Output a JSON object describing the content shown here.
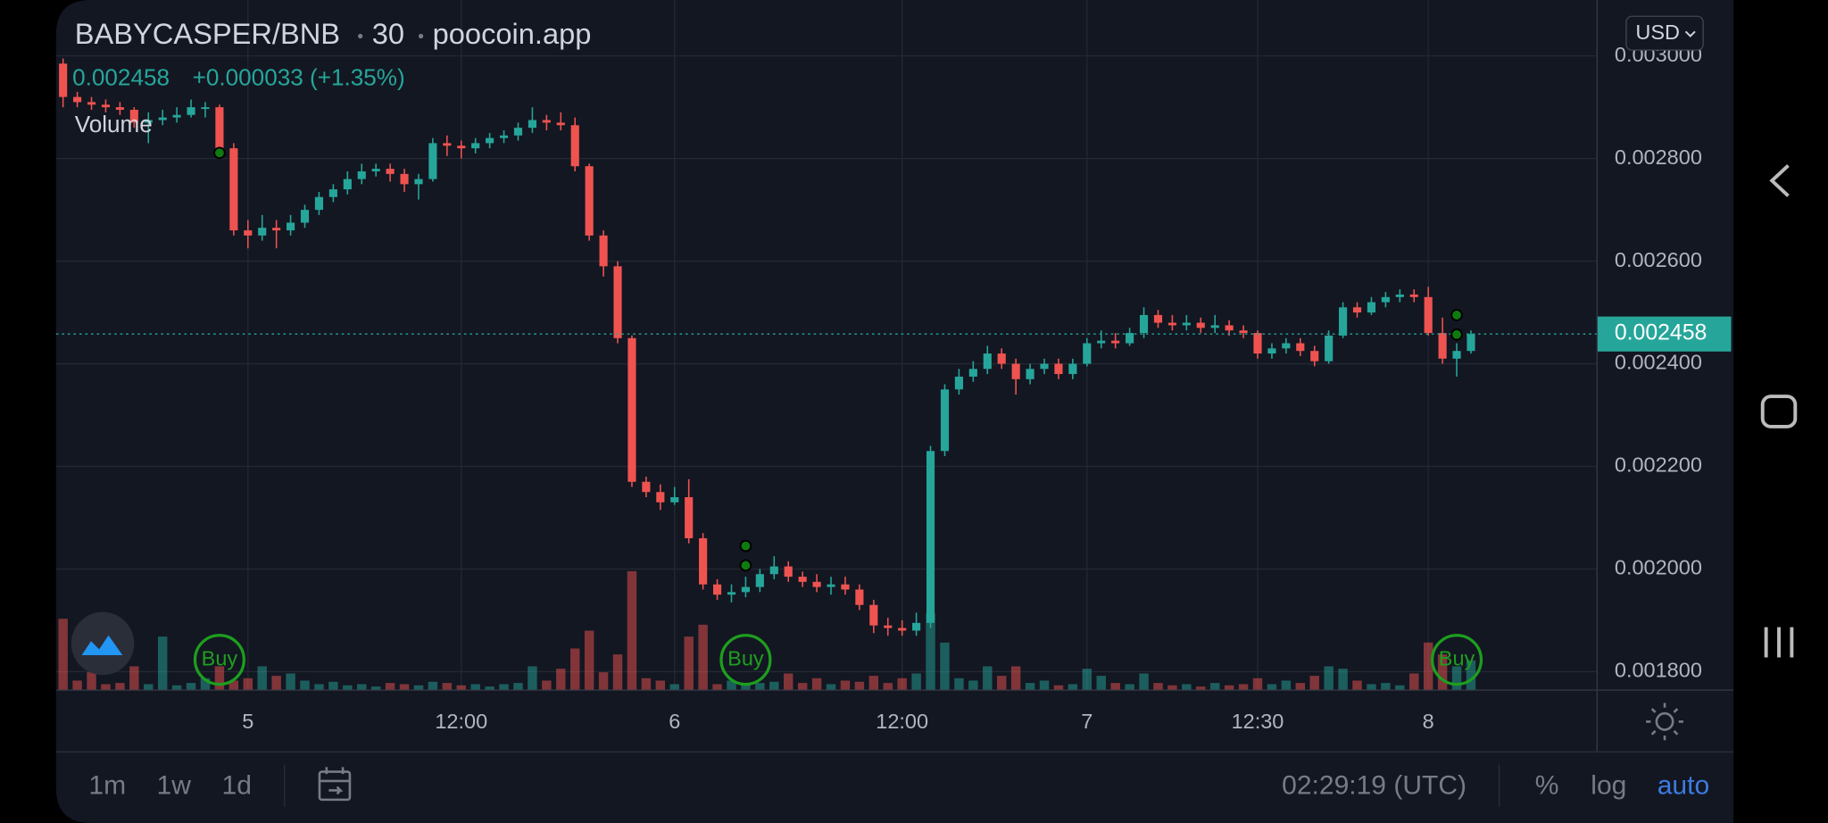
{
  "header": {
    "symbol": "BABYCASPER/BNB",
    "interval": "30",
    "source": "poocoin.app",
    "change": "+0.000033 (+1.35%)",
    "volume_label": "Volume",
    "currency": "USD"
  },
  "chart_data": {
    "type": "candlestick",
    "up_color": "#26a69a",
    "down_color": "#ef5350",
    "grid": true,
    "ylim": [
      0.001764,
      0.003109
    ],
    "yticks": [
      {
        "value": 0.0018,
        "label": "0.001800"
      },
      {
        "value": 0.002,
        "label": "0.002000"
      },
      {
        "value": 0.0022,
        "label": "0.002200"
      },
      {
        "value": 0.0024,
        "label": "0.002400"
      },
      {
        "value": 0.0026,
        "label": "0.002600"
      },
      {
        "value": 0.0028,
        "label": "0.002800"
      },
      {
        "value": 0.003,
        "label": "0.003000"
      }
    ],
    "xticks": [
      {
        "value": 13,
        "label": "5"
      },
      {
        "value": 28,
        "label": "12:00"
      },
      {
        "value": 43,
        "label": "6"
      },
      {
        "value": 59,
        "label": "12:00"
      },
      {
        "value": 72,
        "label": "7"
      },
      {
        "value": 84,
        "label": "12:30"
      },
      {
        "value": 96,
        "label": "8"
      }
    ],
    "last_price": 0.002458,
    "candles": [
      [
        0.002985,
        0.002995,
        0.0029,
        0.00292
      ],
      [
        0.00292,
        0.00293,
        0.0029,
        0.00291
      ],
      [
        0.00291,
        0.00292,
        0.002895,
        0.002905
      ],
      [
        0.002905,
        0.002915,
        0.00289,
        0.0029
      ],
      [
        0.0029,
        0.00291,
        0.002885,
        0.002895
      ],
      [
        0.002895,
        0.0029,
        0.00286,
        0.00287
      ],
      [
        0.00287,
        0.00289,
        0.00283,
        0.002875
      ],
      [
        0.002875,
        0.002895,
        0.002865,
        0.00288
      ],
      [
        0.00288,
        0.0029,
        0.00287,
        0.002885
      ],
      [
        0.002885,
        0.002915,
        0.00288,
        0.0029
      ],
      [
        0.0029,
        0.00291,
        0.00288,
        0.0029
      ],
      [
        0.0029,
        0.002905,
        0.00281,
        0.00282
      ],
      [
        0.00282,
        0.00283,
        0.00265,
        0.00266
      ],
      [
        0.00266,
        0.00268,
        0.002625,
        0.00265
      ],
      [
        0.00265,
        0.00269,
        0.00264,
        0.002665
      ],
      [
        0.002665,
        0.00268,
        0.002625,
        0.00266
      ],
      [
        0.00266,
        0.00269,
        0.00265,
        0.002675
      ],
      [
        0.002675,
        0.00271,
        0.002665,
        0.0027
      ],
      [
        0.0027,
        0.002735,
        0.00269,
        0.002725
      ],
      [
        0.002725,
        0.00275,
        0.002715,
        0.00274
      ],
      [
        0.00274,
        0.002775,
        0.00273,
        0.00276
      ],
      [
        0.00276,
        0.00279,
        0.00275,
        0.002775
      ],
      [
        0.002775,
        0.00279,
        0.002765,
        0.00278
      ],
      [
        0.00278,
        0.00279,
        0.002755,
        0.00277
      ],
      [
        0.00277,
        0.00278,
        0.002735,
        0.00275
      ],
      [
        0.00275,
        0.00277,
        0.00272,
        0.00276
      ],
      [
        0.00276,
        0.00284,
        0.002755,
        0.00283
      ],
      [
        0.00283,
        0.002845,
        0.002805,
        0.002825
      ],
      [
        0.002825,
        0.002835,
        0.0028,
        0.00282
      ],
      [
        0.00282,
        0.00284,
        0.00281,
        0.00283
      ],
      [
        0.00283,
        0.00285,
        0.00282,
        0.00284
      ],
      [
        0.00284,
        0.002855,
        0.00283,
        0.002845
      ],
      [
        0.002845,
        0.00287,
        0.002835,
        0.00286
      ],
      [
        0.00286,
        0.0029,
        0.00285,
        0.002875
      ],
      [
        0.002875,
        0.002885,
        0.002855,
        0.00287
      ],
      [
        0.00287,
        0.00289,
        0.002855,
        0.002865
      ],
      [
        0.002865,
        0.00288,
        0.002775,
        0.002785
      ],
      [
        0.002785,
        0.00279,
        0.00264,
        0.00265
      ],
      [
        0.00265,
        0.00266,
        0.00257,
        0.00259
      ],
      [
        0.00259,
        0.0026,
        0.00244,
        0.00245
      ],
      [
        0.00245,
        0.002455,
        0.00216,
        0.00217
      ],
      [
        0.00217,
        0.00218,
        0.00214,
        0.00215
      ],
      [
        0.00215,
        0.002165,
        0.002115,
        0.00213
      ],
      [
        0.00213,
        0.00216,
        0.002125,
        0.00214
      ],
      [
        0.00214,
        0.002175,
        0.00205,
        0.00206
      ],
      [
        0.00206,
        0.00207,
        0.00196,
        0.00197
      ],
      [
        0.00197,
        0.00198,
        0.00194,
        0.00195
      ],
      [
        0.00195,
        0.00197,
        0.001935,
        0.001955
      ],
      [
        0.001955,
        0.001985,
        0.001945,
        0.001965
      ],
      [
        0.001965,
        0.002,
        0.001955,
        0.00199
      ],
      [
        0.00199,
        0.002025,
        0.00198,
        0.002005
      ],
      [
        0.002005,
        0.002015,
        0.001975,
        0.001985
      ],
      [
        0.001985,
        0.001995,
        0.001965,
        0.001975
      ],
      [
        0.001975,
        0.00199,
        0.001955,
        0.001965
      ],
      [
        0.001965,
        0.001985,
        0.00195,
        0.00197
      ],
      [
        0.00197,
        0.001985,
        0.00195,
        0.00196
      ],
      [
        0.00196,
        0.00197,
        0.00192,
        0.00193
      ],
      [
        0.00193,
        0.00194,
        0.001875,
        0.00189
      ],
      [
        0.00189,
        0.001905,
        0.00187,
        0.001885
      ],
      [
        0.001885,
        0.0019,
        0.00187,
        0.00188
      ],
      [
        0.00188,
        0.001915,
        0.00187,
        0.001895
      ],
      [
        0.001895,
        0.00224,
        0.001885,
        0.00223
      ],
      [
        0.00223,
        0.00236,
        0.00222,
        0.00235
      ],
      [
        0.00235,
        0.00239,
        0.00234,
        0.002375
      ],
      [
        0.002375,
        0.002405,
        0.002365,
        0.00239
      ],
      [
        0.00239,
        0.002435,
        0.00238,
        0.00242
      ],
      [
        0.00242,
        0.00243,
        0.00239,
        0.0024
      ],
      [
        0.0024,
        0.00241,
        0.00234,
        0.00237
      ],
      [
        0.00237,
        0.0024,
        0.00236,
        0.00239
      ],
      [
        0.00239,
        0.00241,
        0.00238,
        0.0024
      ],
      [
        0.0024,
        0.00241,
        0.00237,
        0.00238
      ],
      [
        0.00238,
        0.00241,
        0.00237,
        0.0024
      ],
      [
        0.0024,
        0.00245,
        0.002395,
        0.00244
      ],
      [
        0.00244,
        0.002465,
        0.00243,
        0.002445
      ],
      [
        0.002445,
        0.00246,
        0.00243,
        0.00244
      ],
      [
        0.00244,
        0.00247,
        0.002435,
        0.00246
      ],
      [
        0.00246,
        0.00251,
        0.00245,
        0.002495
      ],
      [
        0.002495,
        0.002505,
        0.00247,
        0.00248
      ],
      [
        0.00248,
        0.002495,
        0.002465,
        0.002475
      ],
      [
        0.002475,
        0.002495,
        0.002465,
        0.00248
      ],
      [
        0.00248,
        0.00249,
        0.00246,
        0.00247
      ],
      [
        0.00247,
        0.002495,
        0.00246,
        0.002475
      ],
      [
        0.002475,
        0.002485,
        0.002455,
        0.002465
      ],
      [
        0.002465,
        0.002475,
        0.00245,
        0.00246
      ],
      [
        0.00246,
        0.002465,
        0.00241,
        0.00242
      ],
      [
        0.00242,
        0.00244,
        0.00241,
        0.00243
      ],
      [
        0.00243,
        0.00245,
        0.00242,
        0.00244
      ],
      [
        0.00244,
        0.00245,
        0.002415,
        0.002425
      ],
      [
        0.002425,
        0.002435,
        0.002395,
        0.002405
      ],
      [
        0.002405,
        0.002465,
        0.0024,
        0.002455
      ],
      [
        0.002455,
        0.00252,
        0.00245,
        0.00251
      ],
      [
        0.00251,
        0.00252,
        0.00249,
        0.0025
      ],
      [
        0.0025,
        0.00253,
        0.002495,
        0.00252
      ],
      [
        0.00252,
        0.00254,
        0.00251,
        0.00253
      ],
      [
        0.00253,
        0.002545,
        0.00252,
        0.002535
      ],
      [
        0.002535,
        0.002545,
        0.00252,
        0.00253
      ],
      [
        0.00253,
        0.00255,
        0.002455,
        0.00246
      ],
      [
        0.00246,
        0.00249,
        0.0024,
        0.00241
      ],
      [
        0.00241,
        0.00244,
        0.002375,
        0.002425
      ],
      [
        0.002425,
        0.002465,
        0.00242,
        0.002458
      ]
    ],
    "volume": [
      60,
      8,
      15,
      5,
      6,
      20,
      5,
      45,
      4,
      6,
      10,
      20,
      8,
      10,
      20,
      12,
      14,
      8,
      5,
      7,
      4,
      5,
      3,
      6,
      5,
      4,
      7,
      6,
      4,
      5,
      3,
      5,
      6,
      20,
      8,
      18,
      35,
      50,
      15,
      30,
      100,
      10,
      8,
      5,
      45,
      55,
      5,
      8,
      4,
      6,
      7,
      14,
      6,
      10,
      5,
      8,
      7,
      12,
      6,
      10,
      14,
      65,
      40,
      10,
      8,
      20,
      12,
      20,
      6,
      8,
      4,
      5,
      18,
      12,
      6,
      5,
      14,
      6,
      4,
      5,
      3,
      6,
      4,
      5,
      10,
      5,
      8,
      6,
      12,
      20,
      18,
      8,
      5,
      6,
      4,
      14,
      40,
      30,
      20,
      25
    ],
    "buy_markers": [
      {
        "index": 11,
        "label": "Buy"
      },
      {
        "index": 48,
        "label": "Buy"
      },
      {
        "index": 98,
        "label": "Buy"
      }
    ],
    "signal_dots": [
      {
        "index": 11,
        "price": 0.002811
      },
      {
        "index": 48,
        "price": 0.002045
      },
      {
        "index": 48,
        "price": 0.002007
      },
      {
        "index": 98,
        "price": 0.002495
      },
      {
        "index": 98,
        "price": 0.002457
      }
    ]
  },
  "toolbar": {
    "ranges": [
      "1m",
      "1w",
      "1d"
    ],
    "clock": "02:29:19 (UTC)",
    "options": [
      "%",
      "log",
      "auto"
    ]
  }
}
